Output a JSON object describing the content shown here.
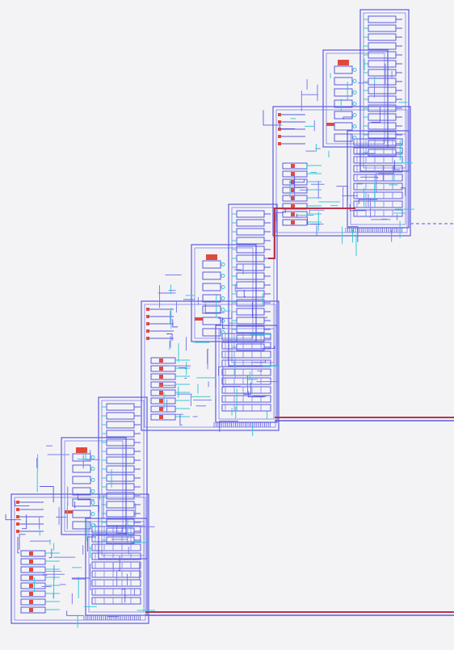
{
  "schematic": {
    "background": "#f3f3f5",
    "colors": {
      "wire_primary": "#5a5ae0",
      "wire_secondary": "#7c7cf0",
      "wire_cyan": "#35c9d6",
      "component_red": "#e04a3a",
      "bus_red": "#b8324a",
      "bus_dash": "#8a8af0"
    },
    "modules": [
      {
        "id": "stage-1"
      },
      {
        "id": "stage-2"
      },
      {
        "id": "stage-3"
      }
    ],
    "buses": [
      {
        "id": "bus-top",
        "style": "dashed"
      },
      {
        "id": "bus-middle",
        "style": "double"
      },
      {
        "id": "bus-bottom",
        "style": "double"
      }
    ]
  }
}
